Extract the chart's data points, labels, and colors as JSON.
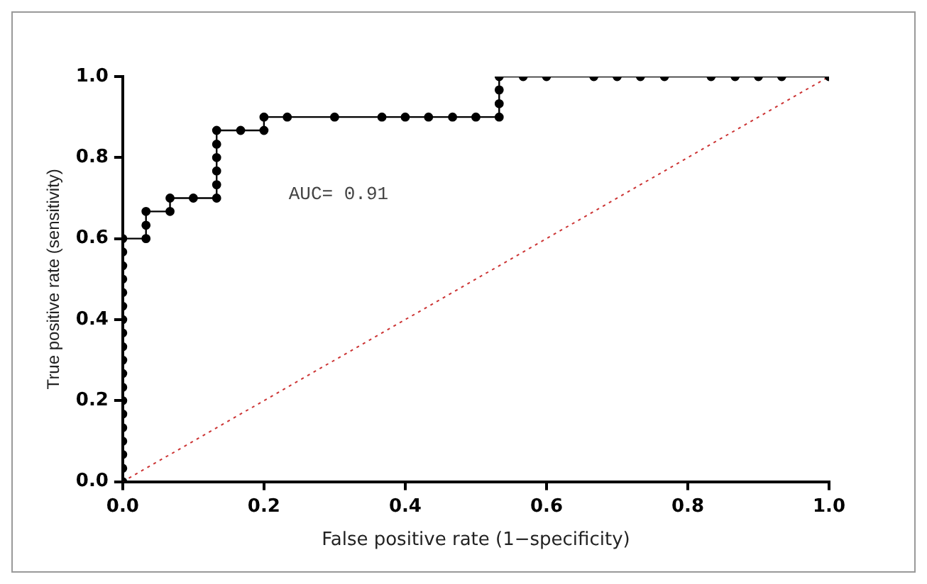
{
  "chart_data": {
    "type": "line",
    "xlabel": "False positive rate (1−specificity)",
    "ylabel": "True positive rate (sensitivity)",
    "annotations": [
      "AUC= 0.91"
    ],
    "xlim": [
      0,
      1
    ],
    "ylim": [
      0,
      1
    ],
    "xticks": [
      {
        "value": 0,
        "label": "0.0"
      },
      {
        "value": 0.2,
        "label": "0.2"
      },
      {
        "value": 0.4,
        "label": "0.4"
      },
      {
        "value": 0.6,
        "label": "0.6"
      },
      {
        "value": 0.8,
        "label": "0.8"
      },
      {
        "value": 1,
        "label": "1.0"
      }
    ],
    "yticks": [
      {
        "value": 0,
        "label": "0.0"
      },
      {
        "value": 0.2,
        "label": "0.2"
      },
      {
        "value": 0.4,
        "label": "0.4"
      },
      {
        "value": 0.6,
        "label": "0.6"
      },
      {
        "value": 0.8,
        "label": "0.8"
      },
      {
        "value": 1,
        "label": "1.0"
      }
    ],
    "grid": false,
    "legend": false,
    "series": [
      {
        "type": "line",
        "color": "#000000",
        "marker": "circle",
        "line_style": "solid",
        "x": [
          0,
          0,
          0,
          0,
          0,
          0,
          0,
          0,
          0,
          0,
          0,
          0,
          0,
          0,
          0,
          0,
          0,
          0,
          0,
          0.033,
          0.033,
          0.033,
          0.067,
          0.067,
          0.1,
          0.133,
          0.133,
          0.133,
          0.133,
          0.133,
          0.133,
          0.167,
          0.2,
          0.2,
          0.233,
          0.3,
          0.367,
          0.4,
          0.433,
          0.467,
          0.5,
          0.533,
          0.533,
          0.533,
          0.533,
          0.567,
          0.6,
          0.667,
          0.7,
          0.733,
          0.767,
          0.833,
          0.867,
          0.9,
          0.933,
          1
        ],
        "values": [
          0,
          0.033,
          0.067,
          0.1,
          0.133,
          0.167,
          0.2,
          0.233,
          0.267,
          0.3,
          0.333,
          0.367,
          0.4,
          0.433,
          0.467,
          0.5,
          0.533,
          0.567,
          0.6,
          0.6,
          0.633,
          0.667,
          0.667,
          0.7,
          0.7,
          0.7,
          0.733,
          0.767,
          0.8,
          0.833,
          0.867,
          0.867,
          0.867,
          0.9,
          0.9,
          0.9,
          0.9,
          0.9,
          0.9,
          0.9,
          0.9,
          0.9,
          0.933,
          0.967,
          1,
          1,
          1,
          1,
          1,
          1,
          1,
          1,
          1,
          1,
          1,
          1
        ]
      },
      {
        "type": "line",
        "color": "#cc3333",
        "marker": "none",
        "line_style": "dotted",
        "x": [
          0,
          1
        ],
        "values": [
          0,
          1
        ]
      }
    ]
  }
}
